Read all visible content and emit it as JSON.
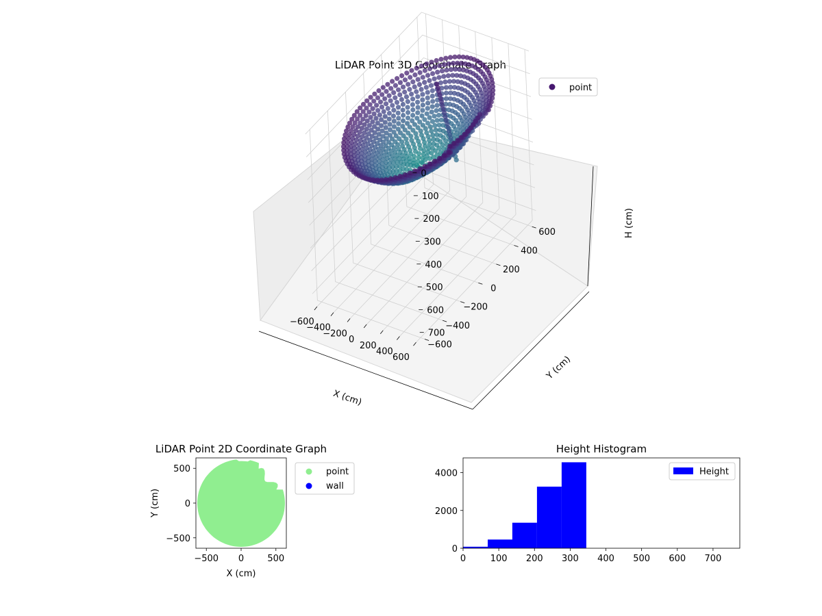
{
  "chart_data": [
    {
      "type": "scatter",
      "subtype": "3d",
      "title": "LiDAR Point 3D Coordinate Graph",
      "xlabel": "X (cm)",
      "ylabel": "Y (cm)",
      "zlabel": "H (cm)",
      "x_ticks": [
        "−600",
        "−400",
        "−200",
        "0",
        "200",
        "400",
        "600"
      ],
      "y_ticks": [
        "−600",
        "−400",
        "−200",
        "0",
        "200",
        "400",
        "600"
      ],
      "z_ticks": [
        "0",
        "100",
        "200",
        "300",
        "400",
        "500",
        "600",
        "700"
      ],
      "xlim": [
        -650,
        650
      ],
      "ylim": [
        -650,
        650
      ],
      "zlim": [
        750,
        0
      ],
      "z_inverted": true,
      "grid": true,
      "legend": {
        "position": "upper-right",
        "entries": [
          {
            "label": "point",
            "color": "#46186f"
          }
        ]
      },
      "colormap": "viridis",
      "description_shape": "bowl of points, rim at ~100 cm height, center ~320 cm",
      "rim_radius": 620,
      "rim_height": 110,
      "center_height": 330
    },
    {
      "type": "scatter",
      "title": "LiDAR Point 2D Coordinate Graph",
      "xlabel": "X (cm)",
      "ylabel": "Y (cm)",
      "x_ticks": [
        "−500",
        "0",
        "500"
      ],
      "y_ticks": [
        "500",
        "0",
        "−500"
      ],
      "xlim": [
        -650,
        650
      ],
      "ylim": [
        -650,
        650
      ],
      "legend": {
        "position": "outside-right",
        "entries": [
          {
            "label": "point",
            "color": "#90ee90"
          },
          {
            "label": "wall",
            "color": "#0000ff"
          }
        ]
      },
      "radius": 630
    },
    {
      "type": "bar",
      "subtype": "histogram",
      "title": "Height Histogram",
      "x_ticks": [
        "0",
        "100",
        "200",
        "300",
        "400",
        "500",
        "600",
        "700"
      ],
      "y_ticks": [
        "0",
        "2000",
        "4000"
      ],
      "xlim": [
        0,
        775
      ],
      "ylim": [
        0,
        4780
      ],
      "bin_edges": [
        0,
        69,
        138,
        207,
        276,
        345
      ],
      "values": [
        80,
        460,
        1350,
        3260,
        4550
      ],
      "series": [
        {
          "name": "Height",
          "color": "#0000ff"
        }
      ],
      "legend": {
        "position": "upper-right"
      }
    }
  ]
}
